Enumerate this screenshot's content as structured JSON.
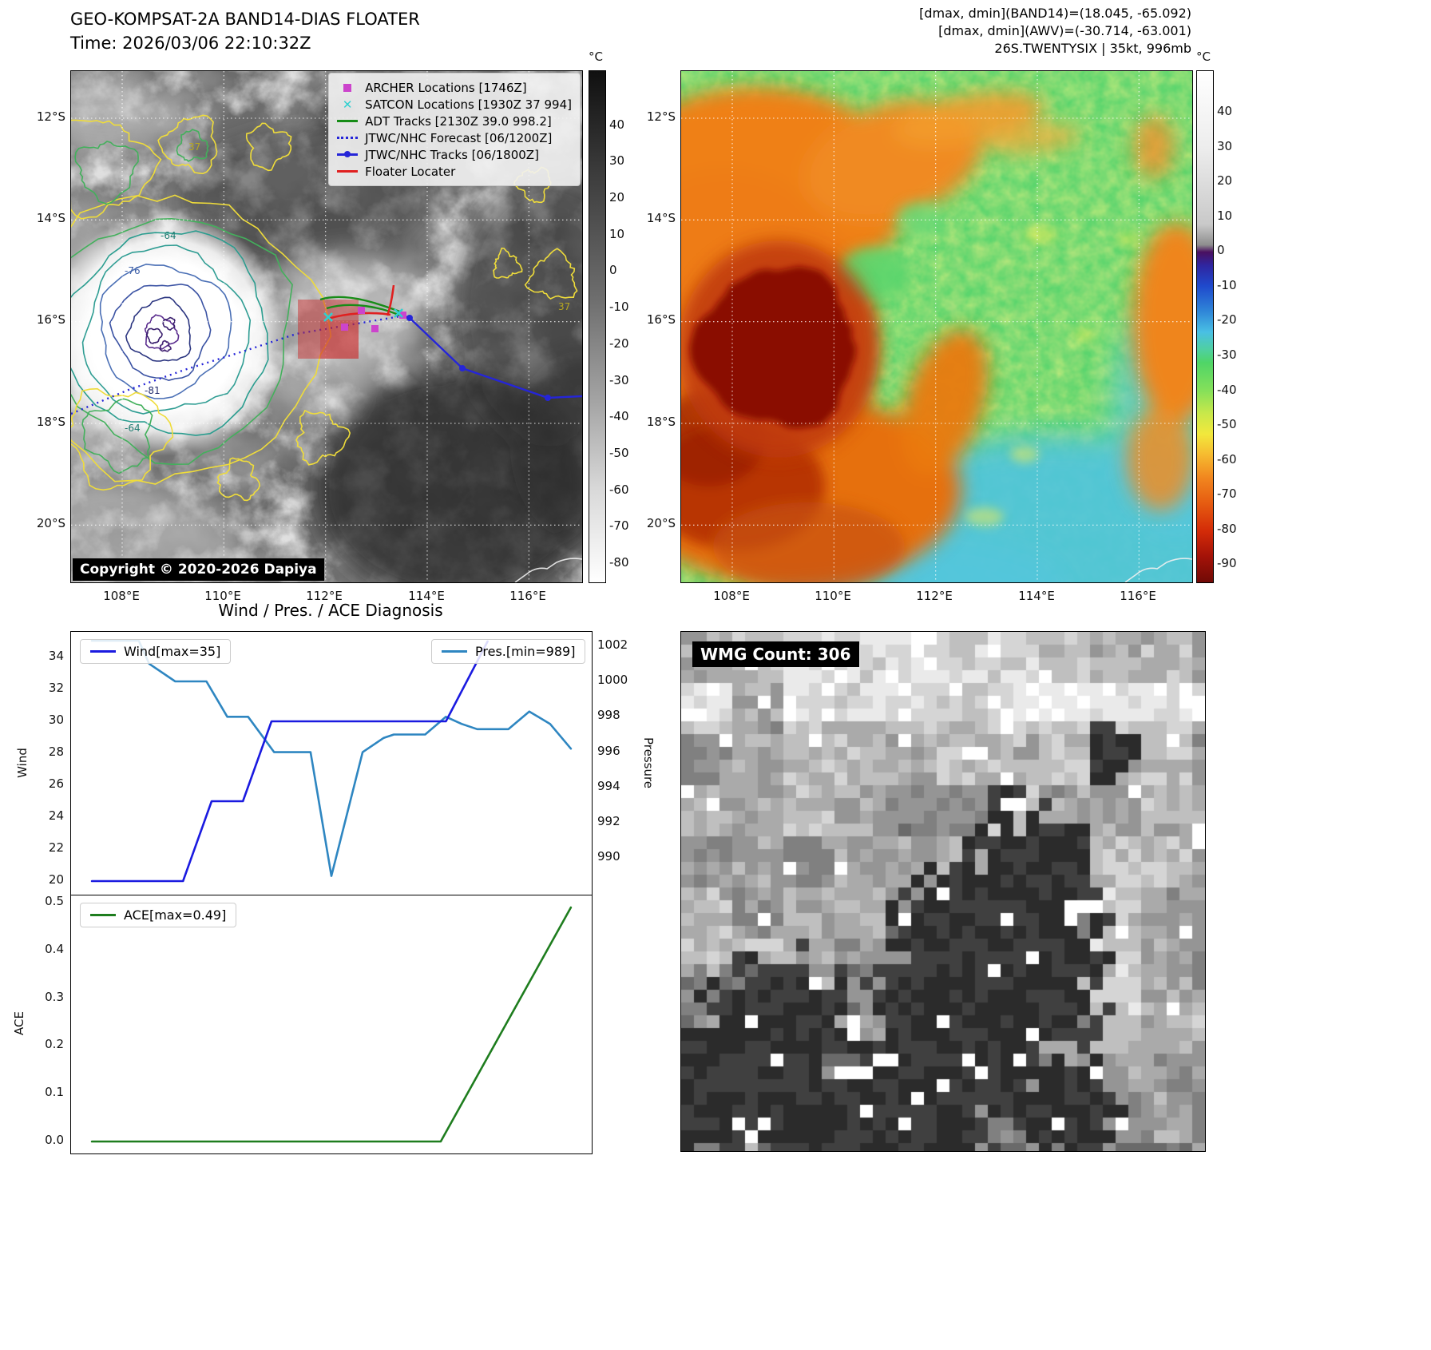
{
  "band14": {
    "title": "GEO-KOMPSAT-2A BAND14-DIAS FLOATER",
    "time": "Time: 2026/03/06 22:10:32Z",
    "copyright": "Copyright © 2020-2026 Dapiya",
    "legend": [
      {
        "label": "ARCHER Locations [1746Z]",
        "marker": "square",
        "color": "#cc44cc"
      },
      {
        "label": "SATCON Locations [1930Z 37 994]",
        "marker": "x",
        "color": "#2fd0d0"
      },
      {
        "label": "ADT Tracks [2130Z 39.0 998.2]",
        "marker": "line",
        "color": "#178c17"
      },
      {
        "label": "JTWC/NHC Forecast [06/1200Z]",
        "marker": "dotted-line",
        "color": "#2525d8"
      },
      {
        "label": "JTWC/NHC Tracks [06/1800Z]",
        "marker": "line-marker",
        "color": "#2525d8"
      },
      {
        "label": "Floater Locater",
        "marker": "line",
        "color": "#e02020"
      }
    ],
    "contour_labels": [
      "37",
      "-64",
      "-76",
      "-81",
      "-64",
      "37"
    ],
    "colorbar": {
      "unit": "°C",
      "ticks": [
        40,
        30,
        20,
        10,
        0,
        -10,
        -20,
        -30,
        -40,
        -50,
        -60,
        -70,
        -80
      ]
    },
    "x_ticks": [
      "108°E",
      "110°E",
      "112°E",
      "114°E",
      "116°E"
    ],
    "y_ticks": [
      "12°S",
      "14°S",
      "16°S",
      "18°S",
      "20°S"
    ]
  },
  "awv": {
    "header_lines": [
      "[dmax, dmin](BAND14)=(18.045, -65.092)",
      "[dmax, dmin](AWV)=(-30.714, -63.001)",
      "26S.TWENTYSIX | 35kt, 996mb"
    ],
    "colorbar": {
      "unit": "°C",
      "ticks": [
        40,
        30,
        20,
        10,
        0,
        -10,
        -20,
        -30,
        -40,
        -50,
        -60,
        -70,
        -80,
        -90
      ]
    },
    "x_ticks": [
      "108°E",
      "110°E",
      "112°E",
      "114°E",
      "116°E"
    ],
    "y_ticks": [
      "12°S",
      "14°S",
      "16°S",
      "18°S",
      "20°S"
    ]
  },
  "wmg": {
    "label": "WMG Count: 306"
  },
  "chart_data": [
    {
      "type": "line",
      "title": "Wind / Pres. / ACE Diagnosis",
      "xlim": [
        0,
        100
      ],
      "left_axis": {
        "label": "Wind",
        "lim": [
          19.1,
          35.6
        ],
        "ticks": [
          20,
          22,
          24,
          26,
          28,
          30,
          32,
          34
        ]
      },
      "right_axis": {
        "label": "Pressure",
        "lim": [
          987.9,
          1002.8
        ],
        "ticks": [
          990,
          992,
          994,
          996,
          998,
          1000,
          1002
        ]
      },
      "series": [
        {
          "name": "Wind[max=35]",
          "color": "#1a1ae0",
          "axis": "left",
          "points": [
            [
              4,
              20
            ],
            [
              21.5,
              20
            ],
            [
              27,
              25
            ],
            [
              33,
              25
            ],
            [
              38.5,
              30
            ],
            [
              72,
              30
            ],
            [
              80,
              35
            ]
          ]
        },
        {
          "name": "Pres.[min=989]",
          "color": "#2e86c1",
          "axis": "right",
          "points": [
            [
              4,
              1002.3
            ],
            [
              13,
              1002.3
            ],
            [
              15,
              1001
            ],
            [
              20,
              1000
            ],
            [
              26,
              1000
            ],
            [
              28,
              999
            ],
            [
              30,
              998
            ],
            [
              34,
              998
            ],
            [
              39,
              996
            ],
            [
              46,
              996
            ],
            [
              50,
              989
            ],
            [
              56,
              996
            ],
            [
              60,
              996.8
            ],
            [
              62,
              997
            ],
            [
              68,
              997
            ],
            [
              72,
              998
            ],
            [
              75,
              997.6
            ],
            [
              78,
              997.3
            ],
            [
              84,
              997.3
            ],
            [
              88,
              998.3
            ],
            [
              92,
              997.6
            ],
            [
              96,
              996.2
            ]
          ]
        }
      ]
    },
    {
      "type": "line",
      "title": "",
      "xlim": [
        0,
        100
      ],
      "left_axis": {
        "label": "ACE",
        "lim": [
          -0.025,
          0.515
        ],
        "ticks": [
          "0.0",
          "0.1",
          "0.2",
          "0.3",
          "0.4",
          "0.5"
        ]
      },
      "series": [
        {
          "name": "ACE[max=0.49]",
          "color": "#1e7d1e",
          "axis": "left",
          "points": [
            [
              4,
              0
            ],
            [
              71,
              0
            ],
            [
              96,
              0.49
            ]
          ]
        }
      ]
    }
  ]
}
